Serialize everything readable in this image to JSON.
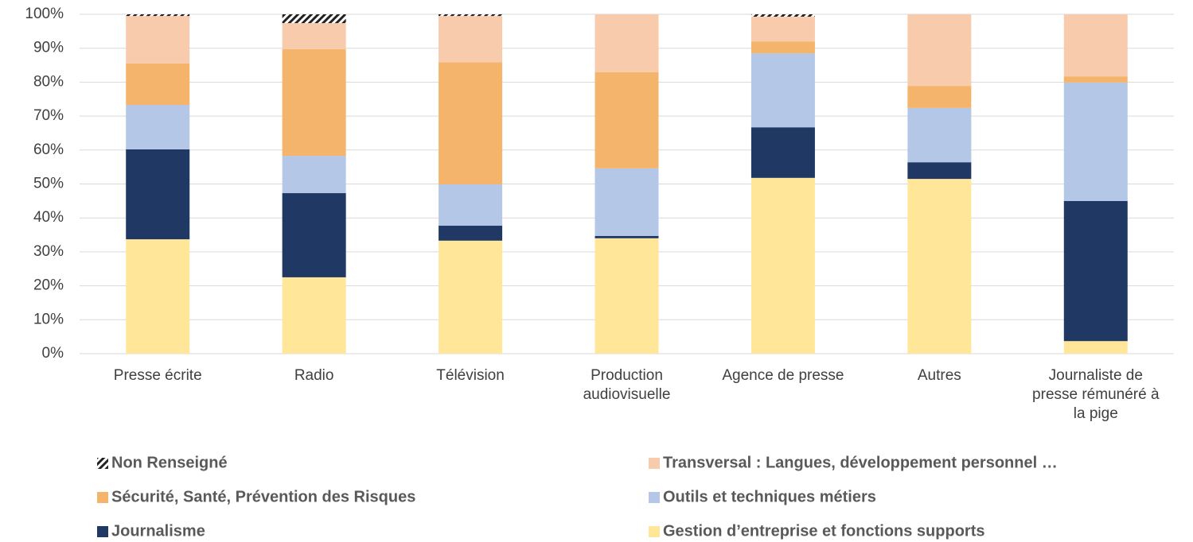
{
  "chart_data": {
    "type": "stacked_bar",
    "categories": [
      "Presse écrite",
      "Radio",
      "Télévision",
      "Production audiovisuelle",
      "Agence de presse",
      "Autres",
      "Journaliste de presse rémunéré à la pige"
    ],
    "series": [
      {
        "name": "Gestion d’entreprise et fonctions supports",
        "color": "#ffe699",
        "values": [
          33.7,
          22.5,
          33.3,
          34.0,
          51.8,
          51.5,
          3.7
        ]
      },
      {
        "name": "Journalisme",
        "color": "#203864",
        "values": [
          26.5,
          24.8,
          4.4,
          0.7,
          14.9,
          4.9,
          41.3
        ]
      },
      {
        "name": "Outils et techniques métiers",
        "color": "#b4c7e7",
        "values": [
          13.1,
          11.0,
          12.2,
          19.9,
          21.8,
          16.0,
          34.9
        ]
      },
      {
        "name": "Sécurité, Santé, Prévention des Risques",
        "color": "#f4b46c",
        "values": [
          12.2,
          31.4,
          36.0,
          28.3,
          3.5,
          6.5,
          1.8
        ]
      },
      {
        "name": "Transversal : Langues, développement personnel …",
        "color": "#f8cbad",
        "values": [
          14.0,
          7.7,
          13.6,
          17.1,
          7.3,
          21.1,
          18.3
        ]
      },
      {
        "name": "Non Renseigné",
        "color": "#222222",
        "values": [
          0.5,
          2.6,
          0.5,
          0,
          0.7,
          0,
          0
        ]
      }
    ],
    "ylim": [
      0,
      100
    ],
    "yticks": [
      {
        "value": 0,
        "label": "0%"
      },
      {
        "value": 10,
        "label": "10%"
      },
      {
        "value": 20,
        "label": "20%"
      },
      {
        "value": 30,
        "label": "30%"
      },
      {
        "value": 40,
        "label": "40%"
      },
      {
        "value": 50,
        "label": "50%"
      },
      {
        "value": 60,
        "label": "60%"
      },
      {
        "value": 70,
        "label": "70%"
      },
      {
        "value": 80,
        "label": "80%"
      },
      {
        "value": 90,
        "label": "90%"
      },
      {
        "value": 100,
        "label": "100%"
      }
    ],
    "grid": true
  }
}
